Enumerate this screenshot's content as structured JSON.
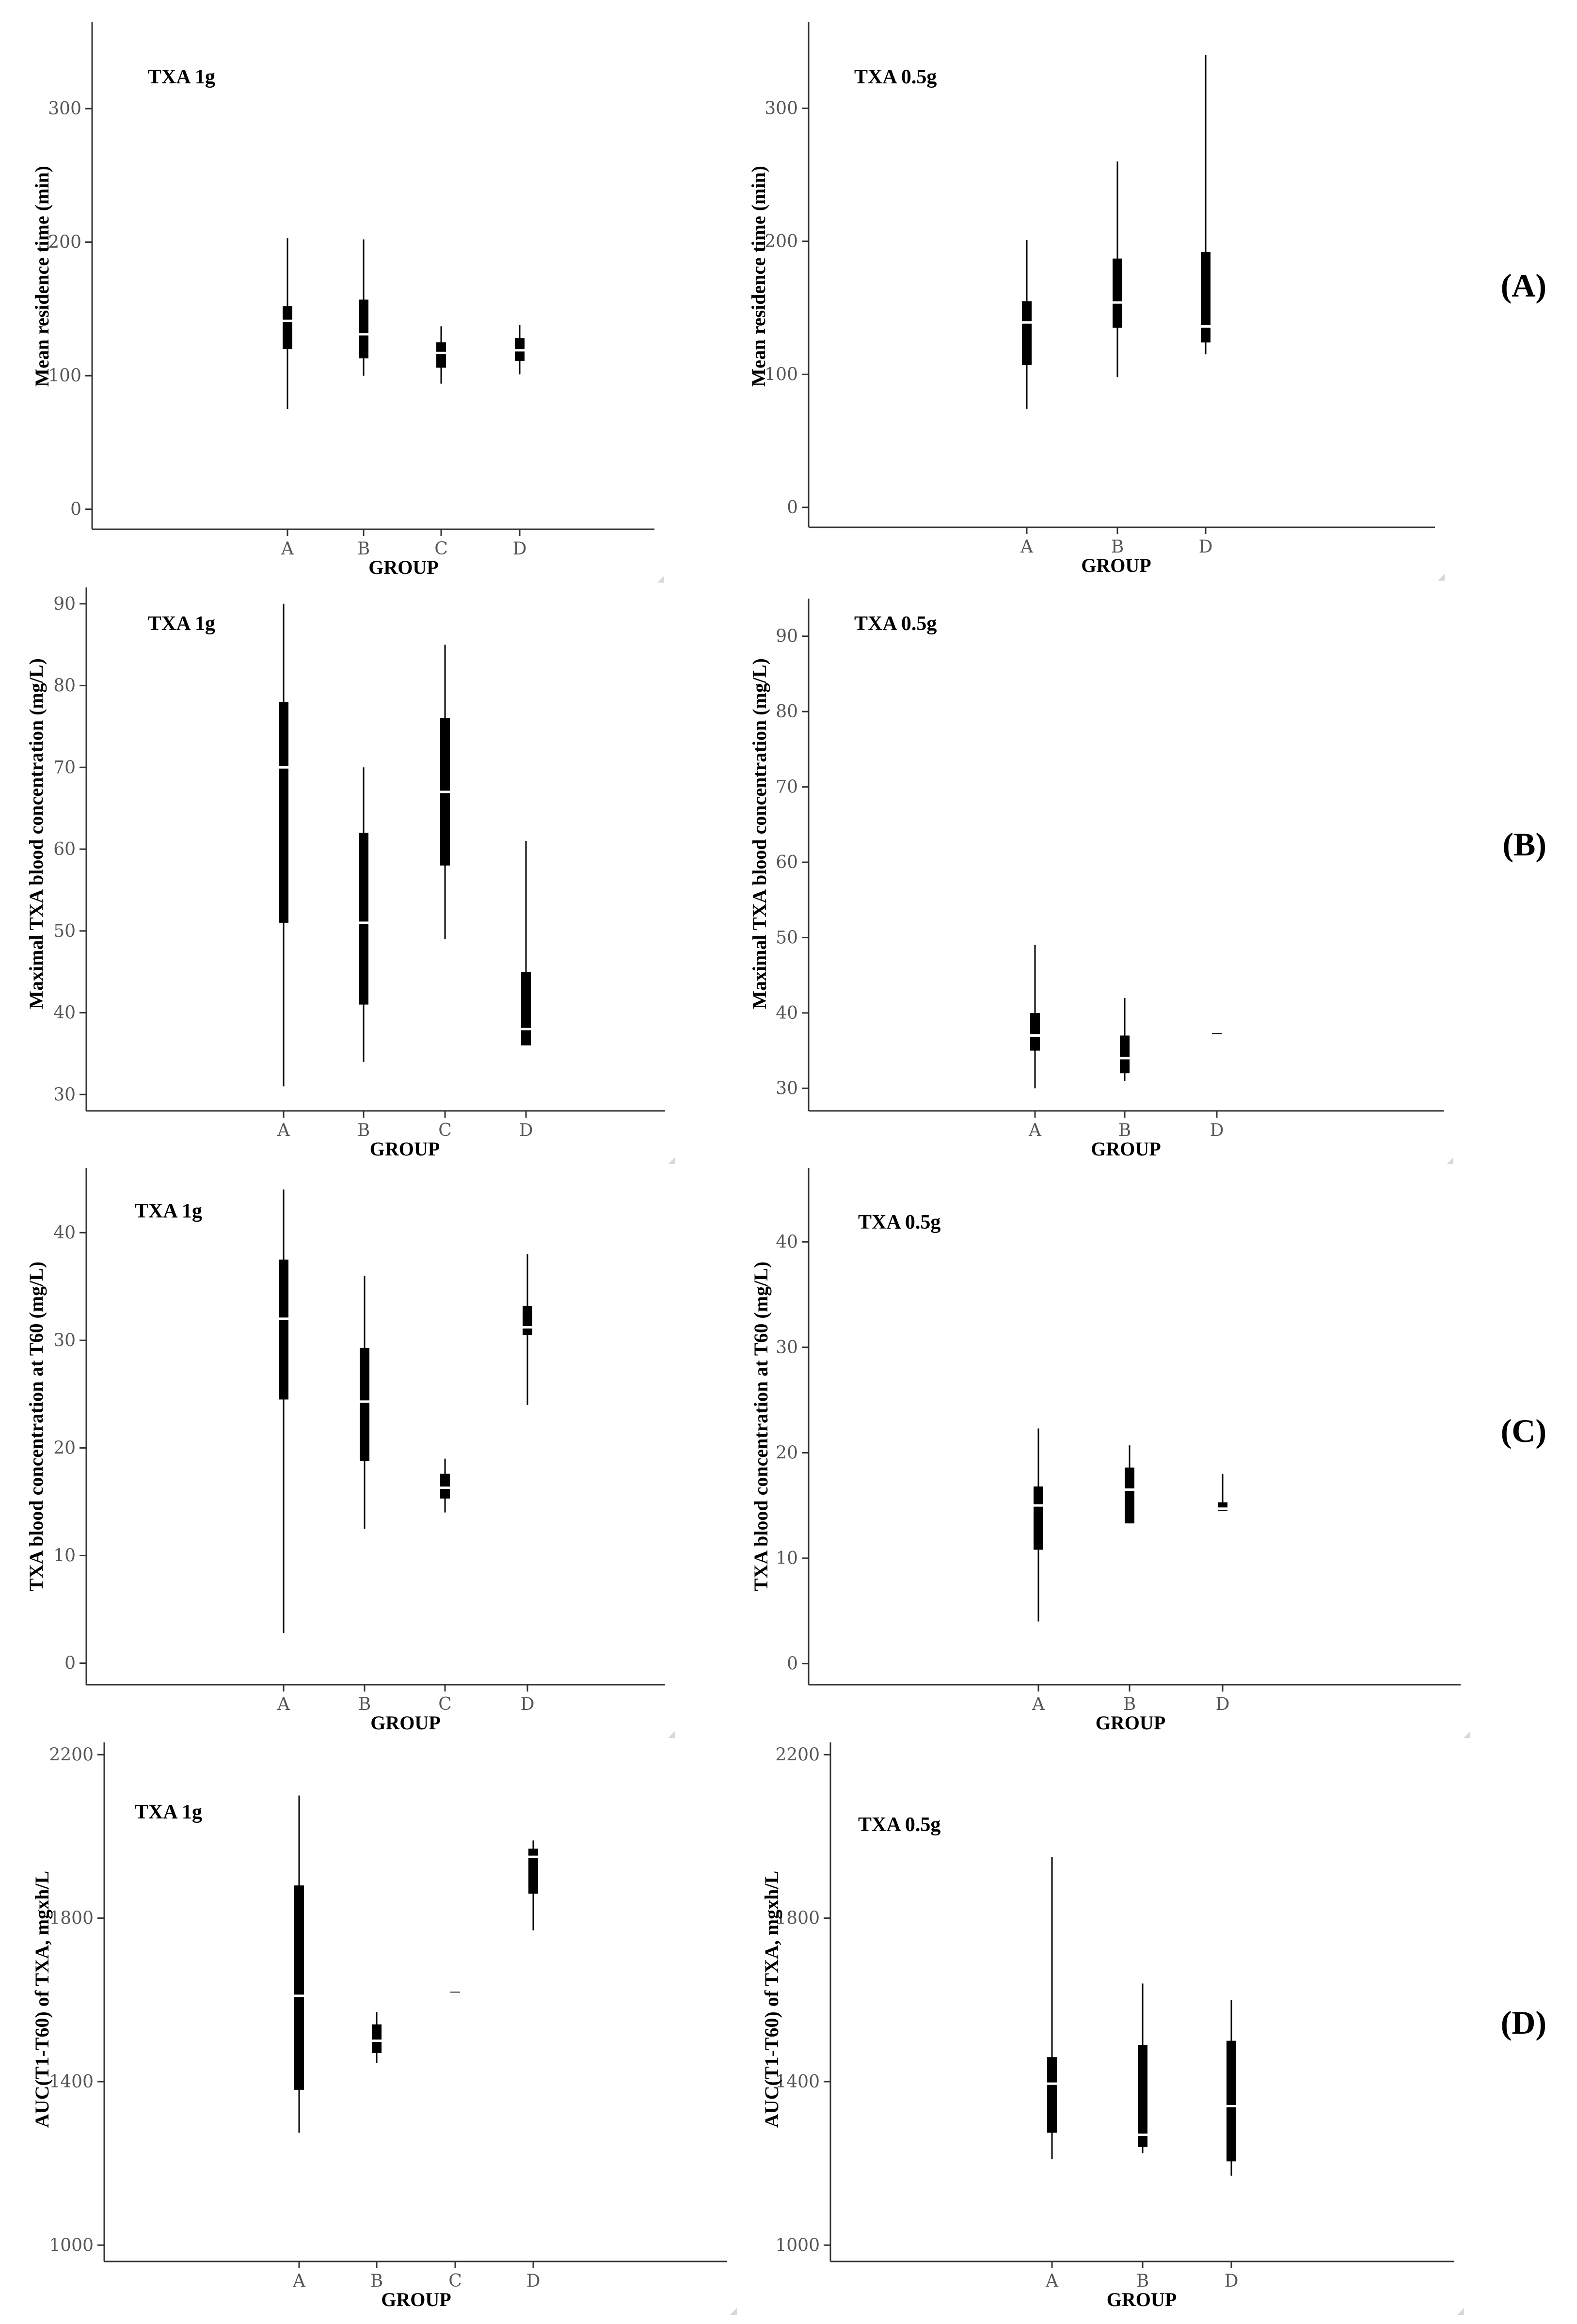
{
  "row_labels": [
    "(A)",
    "(B)",
    "(C)",
    "(D)"
  ],
  "chart_data": [
    {
      "type": "boxplot",
      "title": "TXA 1g",
      "xlabel": "GROUP",
      "ylabel": "Mean residence time (min)",
      "ylim": [
        -15,
        365
      ],
      "yticks": [
        0,
        100,
        200,
        300
      ],
      "categories": [
        "A",
        "B",
        "C",
        "D"
      ],
      "boxes": [
        {
          "group": "A",
          "min": 75,
          "q1": 120,
          "median": 141,
          "q3": 152,
          "max": 203
        },
        {
          "group": "B",
          "min": 100,
          "q1": 113,
          "median": 131,
          "q3": 157,
          "max": 202
        },
        {
          "group": "C",
          "min": 94,
          "q1": 106,
          "median": 117,
          "q3": 125,
          "max": 137
        },
        {
          "group": "D",
          "min": 101,
          "q1": 111,
          "median": 119,
          "q3": 128,
          "max": 138
        }
      ]
    },
    {
      "type": "boxplot",
      "title": "TXA 0.5g",
      "xlabel": "GROUP",
      "ylabel": "Mean residence time (min)",
      "ylim": [
        -15,
        365
      ],
      "yticks": [
        0,
        100,
        200,
        300
      ],
      "categories": [
        "A",
        "B",
        "D"
      ],
      "boxes": [
        {
          "group": "A",
          "min": 74,
          "q1": 107,
          "median": 139,
          "q3": 155,
          "max": 201
        },
        {
          "group": "B",
          "min": 98,
          "q1": 135,
          "median": 154,
          "q3": 187,
          "max": 260
        },
        {
          "group": "D",
          "min": 115,
          "q1": 124,
          "median": 136,
          "q3": 192,
          "max": 340
        }
      ]
    },
    {
      "type": "boxplot",
      "title": "TXA 1g",
      "xlabel": "GROUP",
      "ylabel": "Maximal TXA blood concentration (mg/L)",
      "ylim": [
        28,
        92
      ],
      "yticks": [
        30,
        40,
        50,
        60,
        70,
        80,
        90
      ],
      "categories": [
        "A",
        "B",
        "C",
        "D"
      ],
      "boxes": [
        {
          "group": "A",
          "min": 31,
          "q1": 51,
          "median": 70,
          "q3": 78,
          "max": 90
        },
        {
          "group": "B",
          "min": 34,
          "q1": 41,
          "median": 51,
          "q3": 62,
          "max": 70
        },
        {
          "group": "C",
          "min": 49,
          "q1": 58,
          "median": 67,
          "q3": 76,
          "max": 85
        },
        {
          "group": "D",
          "min": 36,
          "q1": 36,
          "median": 38,
          "q3": 45,
          "max": 61
        }
      ]
    },
    {
      "type": "boxplot",
      "title": "TXA 0.5g",
      "xlabel": "GROUP",
      "ylabel": "Maximal TXA blood concentration (mg/L)",
      "ylim": [
        27,
        95
      ],
      "yticks": [
        30,
        40,
        50,
        60,
        70,
        80,
        90
      ],
      "categories": [
        "A",
        "B",
        "D"
      ],
      "boxes": [
        {
          "group": "A",
          "min": 30,
          "q1": 35,
          "median": 37,
          "q3": 40,
          "max": 49
        },
        {
          "group": "B",
          "min": 31,
          "q1": 32,
          "median": 34,
          "q3": 37,
          "max": 42
        },
        {
          "group": "D",
          "min": 37,
          "q1": 37,
          "median": 37,
          "q3": 37.3,
          "max": 37.3
        }
      ]
    },
    {
      "type": "boxplot",
      "title": "TXA 1g",
      "xlabel": "GROUP",
      "ylabel": "TXA blood concentration at T60 (mg/L)",
      "ylim": [
        -2,
        46
      ],
      "yticks": [
        0,
        10,
        20,
        30,
        40
      ],
      "categories": [
        "A",
        "B",
        "C",
        "D"
      ],
      "boxes": [
        {
          "group": "A",
          "min": 2.8,
          "q1": 24.5,
          "median": 32,
          "q3": 37.5,
          "max": 44
        },
        {
          "group": "B",
          "min": 12.5,
          "q1": 18.8,
          "median": 24.3,
          "q3": 29.3,
          "max": 36
        },
        {
          "group": "C",
          "min": 14,
          "q1": 15.3,
          "median": 16.3,
          "q3": 17.6,
          "max": 19
        },
        {
          "group": "D",
          "min": 24,
          "q1": 30.5,
          "median": 31.2,
          "q3": 33.2,
          "max": 38
        }
      ]
    },
    {
      "type": "boxplot",
      "title": "TXA 0.5g",
      "xlabel": "GROUP",
      "ylabel": "TXA blood concentration at T60 (mg/L)",
      "ylim": [
        -2,
        47
      ],
      "yticks": [
        0,
        10,
        20,
        30,
        40
      ],
      "categories": [
        "A",
        "B",
        "D"
      ],
      "boxes": [
        {
          "group": "A",
          "min": 4,
          "q1": 10.8,
          "median": 15,
          "q3": 16.8,
          "max": 22.3
        },
        {
          "group": "B",
          "min": 13.3,
          "q1": 13.3,
          "median": 16.5,
          "q3": 18.6,
          "max": 20.7
        },
        {
          "group": "D",
          "min": 14.5,
          "q1": 14.5,
          "median": 14.7,
          "q3": 15.3,
          "max": 18
        }
      ]
    },
    {
      "type": "boxplot",
      "title": "TXA 1g",
      "xlabel": "GROUP",
      "ylabel": "AUC(T1-T60) of TXA, mgxh/L",
      "ylim": [
        960,
        2230
      ],
      "yticks": [
        1000,
        1400,
        1800,
        2200
      ],
      "categories": [
        "A",
        "B",
        "C",
        "D"
      ],
      "boxes": [
        {
          "group": "A",
          "min": 1275,
          "q1": 1380,
          "median": 1610,
          "q3": 1880,
          "max": 2100
        },
        {
          "group": "B",
          "min": 1445,
          "q1": 1470,
          "median": 1500,
          "q3": 1540,
          "max": 1570
        },
        {
          "group": "C",
          "min": 1612,
          "q1": 1612,
          "median": 1615,
          "q3": 1620,
          "max": 1620
        },
        {
          "group": "D",
          "min": 1770,
          "q1": 1860,
          "median": 1950,
          "q3": 1970,
          "max": 1990
        }
      ]
    },
    {
      "type": "boxplot",
      "title": "TXA 0.5g",
      "xlabel": "GROUP",
      "ylabel": "AUC(T1-T60) of TXA, mgxh/L",
      "ylim": [
        960,
        2230
      ],
      "yticks": [
        1000,
        1400,
        1800,
        2200
      ],
      "categories": [
        "A",
        "B",
        "D"
      ],
      "boxes": [
        {
          "group": "A",
          "min": 1210,
          "q1": 1275,
          "median": 1395,
          "q3": 1460,
          "max": 1950
        },
        {
          "group": "B",
          "min": 1225,
          "q1": 1240,
          "median": 1270,
          "q3": 1490,
          "max": 1640
        },
        {
          "group": "D",
          "min": 1170,
          "q1": 1205,
          "median": 1340,
          "q3": 1500,
          "max": 1600
        }
      ]
    }
  ]
}
